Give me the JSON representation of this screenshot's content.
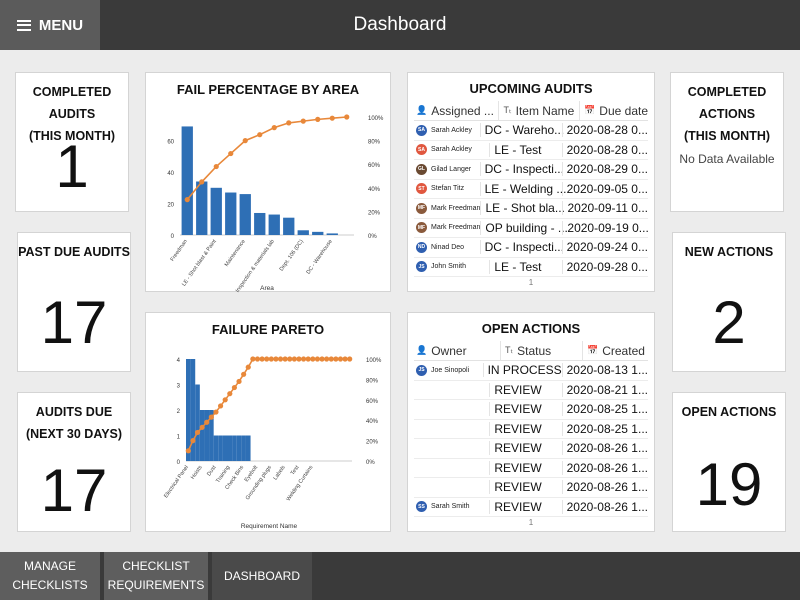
{
  "header": {
    "menu_label": "MENU",
    "title": "Dashboard"
  },
  "kpis": {
    "completed_audits": {
      "title1": "COMPLETED AUDITS",
      "title2": "(THIS MONTH)",
      "value": "1"
    },
    "past_due_audits": {
      "title1": "PAST DUE AUDITS",
      "value": "17"
    },
    "audits_due": {
      "title1": "AUDITS DUE",
      "title2": "(NEXT 30 DAYS)",
      "value": "17"
    },
    "completed_actions": {
      "title1": "COMPLETED ACTIONS",
      "title2": "(THIS MONTH)",
      "nodata": "No Data Available"
    },
    "new_actions": {
      "title1": "NEW ACTIONS",
      "value": "2"
    },
    "open_actions": {
      "title1": "OPEN ACTIONS",
      "value": "19"
    }
  },
  "chart_data": [
    {
      "type": "bar",
      "title": "FAIL PERCENTAGE BY AREA",
      "xlabel": "Area",
      "ylabel": "",
      "categories": [
        "Freedman",
        "",
        "LE - Shot blast & Paint",
        "",
        "Maintenance",
        "",
        "Inspection & materials lab",
        "",
        "Dept. 106 (DC)",
        "",
        "DC - Warehouse",
        ""
      ],
      "series": [
        {
          "type": "bar",
          "axis": "left",
          "color": "#2e6fb5",
          "values": [
            69,
            34,
            30,
            27,
            26,
            14,
            13,
            11,
            3,
            2,
            1,
            0
          ]
        },
        {
          "type": "line",
          "axis": "right",
          "color": "#e8883a",
          "values": [
            30,
            45,
            58,
            69,
            80,
            85,
            91,
            95,
            96.5,
            98,
            99,
            100
          ]
        }
      ],
      "ylim": [
        0,
        75
      ],
      "y_ticks": [
        "0",
        "20",
        "40",
        "60"
      ],
      "y2lim": [
        0,
        100
      ],
      "y2_ticks": [
        "0%",
        "20%",
        "40%",
        "60%",
        "80%",
        "100%"
      ],
      "grid": false
    },
    {
      "type": "bar",
      "title": "FAILURE PARETO",
      "xlabel": "Requirement Name",
      "ylabel": "",
      "categories": [
        "Electrical Panel",
        "",
        "",
        "Hoists",
        "",
        "",
        "Dust",
        "",
        "",
        "Training",
        "",
        "",
        "Check Bins",
        "",
        "",
        "Eyebolt",
        "",
        "",
        "Grounding plugs",
        "",
        "",
        "Labels",
        "",
        "",
        "Test",
        "",
        "",
        "Welding Curtains",
        "",
        "",
        "",
        "",
        "",
        "",
        "",
        ""
      ],
      "series": [
        {
          "type": "bar",
          "axis": "left",
          "color": "#2e6fb5",
          "values": [
            4,
            4,
            3,
            2,
            2,
            2,
            1,
            1,
            1,
            1,
            1,
            1,
            1,
            1,
            0,
            0,
            0,
            0,
            0,
            0,
            0,
            0,
            0,
            0,
            0,
            0,
            0,
            0,
            0,
            0,
            0,
            0,
            0,
            0,
            0,
            0
          ]
        },
        {
          "type": "line",
          "axis": "right",
          "color": "#e8883a",
          "values": [
            10,
            20,
            28,
            33,
            38,
            43,
            48,
            54,
            60,
            66,
            72,
            78,
            85,
            92,
            100,
            100,
            100,
            100,
            100,
            100,
            100,
            100,
            100,
            100,
            100,
            100,
            100,
            100,
            100,
            100,
            100,
            100,
            100,
            100,
            100,
            100
          ]
        }
      ],
      "ylim": [
        0,
        4
      ],
      "y_ticks": [
        "0",
        "1",
        "2",
        "3",
        "4"
      ],
      "y2lim": [
        0,
        100
      ],
      "y2_ticks": [
        "0%",
        "20%",
        "40%",
        "60%",
        "80%",
        "100%"
      ],
      "grid": false
    }
  ],
  "upcoming_audits": {
    "title": "UPCOMING AUDITS",
    "columns": [
      "Assigned ...",
      "Item Name",
      "Due date"
    ],
    "rows": [
      {
        "initials": "SA",
        "color": "#2f5fb0",
        "user": "Sarah Ackley",
        "item": "DC - Wareho...",
        "due": "2020-08-28 0..."
      },
      {
        "initials": "SA",
        "color": "#e0573f",
        "user": "Sarah Ackley",
        "item": "LE - Test",
        "due": "2020-08-28 0..."
      },
      {
        "initials": "GL",
        "color": "#6a4a32",
        "user": "Gilad Langer",
        "item": "DC - Inspecti...",
        "due": "2020-08-29 0..."
      },
      {
        "initials": "ST",
        "color": "#e0573f",
        "user": "Stefan Titz",
        "item": "LE - Welding ...",
        "due": "2020-09-05 0..."
      },
      {
        "initials": "MF",
        "color": "#8a5a3c",
        "user": "Mark Freedman",
        "item": "LE - Shot bla...",
        "due": "2020-09-11 0..."
      },
      {
        "initials": "MF",
        "color": "#8a5a3c",
        "user": "Mark Freedman",
        "item": "OP building - ...",
        "due": "2020-09-19 0..."
      },
      {
        "initials": "ND",
        "color": "#2f5fb0",
        "user": "Ninad Deo",
        "item": "DC - Inspecti...",
        "due": "2020-09-24 0..."
      },
      {
        "initials": "JS",
        "color": "#2f5fb0",
        "user": "John Smith",
        "item": "LE - Test",
        "due": "2020-09-28 0..."
      }
    ],
    "footer": "1"
  },
  "open_actions_table": {
    "title": "OPEN ACTIONS",
    "columns": [
      "Owner",
      "Status",
      "Created"
    ],
    "rows": [
      {
        "initials": "JS",
        "color": "#2f5fb0",
        "user": "Joe Sinopoli",
        "status": "IN PROCESS",
        "created": "2020-08-13 1..."
      },
      {
        "initials": "",
        "color": "",
        "user": "",
        "status": "REVIEW",
        "created": "2020-08-21 1..."
      },
      {
        "initials": "",
        "color": "",
        "user": "",
        "status": "REVIEW",
        "created": "2020-08-25 1..."
      },
      {
        "initials": "",
        "color": "",
        "user": "",
        "status": "REVIEW",
        "created": "2020-08-25 1..."
      },
      {
        "initials": "",
        "color": "",
        "user": "",
        "status": "REVIEW",
        "created": "2020-08-26 1..."
      },
      {
        "initials": "",
        "color": "",
        "user": "",
        "status": "REVIEW",
        "created": "2020-08-26 1..."
      },
      {
        "initials": "",
        "color": "",
        "user": "",
        "status": "REVIEW",
        "created": "2020-08-26 1..."
      },
      {
        "initials": "SS",
        "color": "#2f5fb0",
        "user": "Sarah Smith",
        "status": "REVIEW",
        "created": "2020-08-26 1..."
      }
    ],
    "footer": "1"
  },
  "bottom_nav": {
    "manage_checklists": [
      "MANAGE",
      "CHECKLISTS"
    ],
    "checklist_requirements": [
      "CHECKLIST",
      "REQUIREMENTS"
    ],
    "dashboard": "DASHBOARD"
  },
  "colors": {
    "bar": "#2e6fb5",
    "line": "#e8883a",
    "topbar": "#3a3a3a",
    "menu_button": "#5b5b5b"
  },
  "icons": {
    "menu": "hamburger-icon",
    "owner": "person-icon",
    "text": "text-type-icon",
    "date": "calendar-icon"
  }
}
